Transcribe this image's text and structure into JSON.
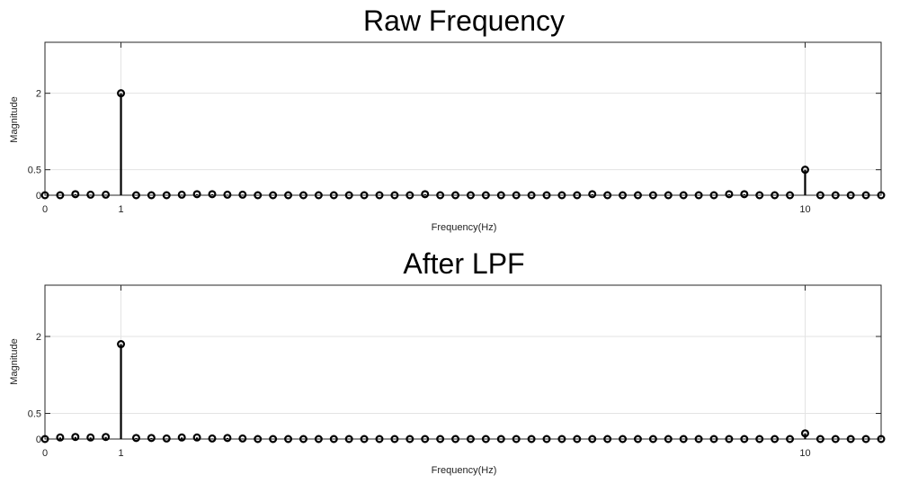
{
  "chart_data": [
    {
      "type": "stem",
      "title": "Raw Frequency",
      "xlabel": "Frequency(Hz)",
      "ylabel": "Magnitude",
      "xlim": [
        0,
        11
      ],
      "ylim": [
        0,
        3.0
      ],
      "xticks": [
        0,
        1,
        10
      ],
      "yticks": [
        0,
        0.5,
        2
      ],
      "grid": true,
      "marker": "circle",
      "x": [
        0,
        0.2,
        0.4,
        0.6,
        0.8,
        1.0,
        1.2,
        1.4,
        1.6,
        1.8,
        2.0,
        2.2,
        2.4,
        2.6,
        2.8,
        3.0,
        3.2,
        3.4,
        3.6,
        3.8,
        4.0,
        4.2,
        4.4,
        4.6,
        4.8,
        5.0,
        5.2,
        5.4,
        5.6,
        5.8,
        6.0,
        6.2,
        6.4,
        6.6,
        6.8,
        7.0,
        7.2,
        7.4,
        7.6,
        7.8,
        8.0,
        8.2,
        8.4,
        8.6,
        8.8,
        9.0,
        9.2,
        9.4,
        9.6,
        9.8,
        10.0,
        10.2,
        10.4,
        10.6,
        10.8,
        11.0
      ],
      "values": [
        0.0,
        0.0,
        0.02,
        0.01,
        0.01,
        2.0,
        0.0,
        0.0,
        0.0,
        0.01,
        0.02,
        0.02,
        0.01,
        0.01,
        0.0,
        0.0,
        0.0,
        0.0,
        0.0,
        0.0,
        0.0,
        0.0,
        0.0,
        0.0,
        0.0,
        0.02,
        0.0,
        0.0,
        0.0,
        0.0,
        0.0,
        0.0,
        0.0,
        0.0,
        0.0,
        0.0,
        0.02,
        0.0,
        0.0,
        0.0,
        0.0,
        0.0,
        0.0,
        0.0,
        0.0,
        0.02,
        0.02,
        0.0,
        0.0,
        0.0,
        0.5,
        0.0,
        0.0,
        0.0,
        0.0,
        0.0
      ]
    },
    {
      "type": "stem",
      "title": "After LPF",
      "xlabel": "Frequency(Hz)",
      "ylabel": "Magnitude",
      "xlim": [
        0,
        11
      ],
      "ylim": [
        0,
        3.0
      ],
      "xticks": [
        0,
        1,
        10
      ],
      "yticks": [
        0,
        0.5,
        2
      ],
      "grid": true,
      "marker": "circle",
      "x": [
        0,
        0.2,
        0.4,
        0.6,
        0.8,
        1.0,
        1.2,
        1.4,
        1.6,
        1.8,
        2.0,
        2.2,
        2.4,
        2.6,
        2.8,
        3.0,
        3.2,
        3.4,
        3.6,
        3.8,
        4.0,
        4.2,
        4.4,
        4.6,
        4.8,
        5.0,
        5.2,
        5.4,
        5.6,
        5.8,
        6.0,
        6.2,
        6.4,
        6.6,
        6.8,
        7.0,
        7.2,
        7.4,
        7.6,
        7.8,
        8.0,
        8.2,
        8.4,
        8.6,
        8.8,
        9.0,
        9.2,
        9.4,
        9.6,
        9.8,
        10.0,
        10.2,
        10.4,
        10.6,
        10.8,
        11.0
      ],
      "values": [
        0.0,
        0.03,
        0.04,
        0.03,
        0.04,
        1.85,
        0.02,
        0.02,
        0.01,
        0.03,
        0.03,
        0.01,
        0.02,
        0.01,
        0.0,
        0.0,
        0.0,
        0.0,
        0.0,
        0.0,
        0.0,
        0.0,
        0.0,
        0.0,
        0.0,
        0.0,
        0.0,
        0.0,
        0.0,
        0.0,
        0.0,
        0.0,
        0.0,
        0.0,
        0.0,
        0.0,
        0.0,
        0.0,
        0.0,
        0.0,
        0.0,
        0.0,
        0.0,
        0.0,
        0.0,
        0.0,
        0.0,
        0.0,
        0.0,
        0.0,
        0.11,
        0.0,
        0.0,
        0.0,
        0.0,
        0.0
      ]
    }
  ]
}
